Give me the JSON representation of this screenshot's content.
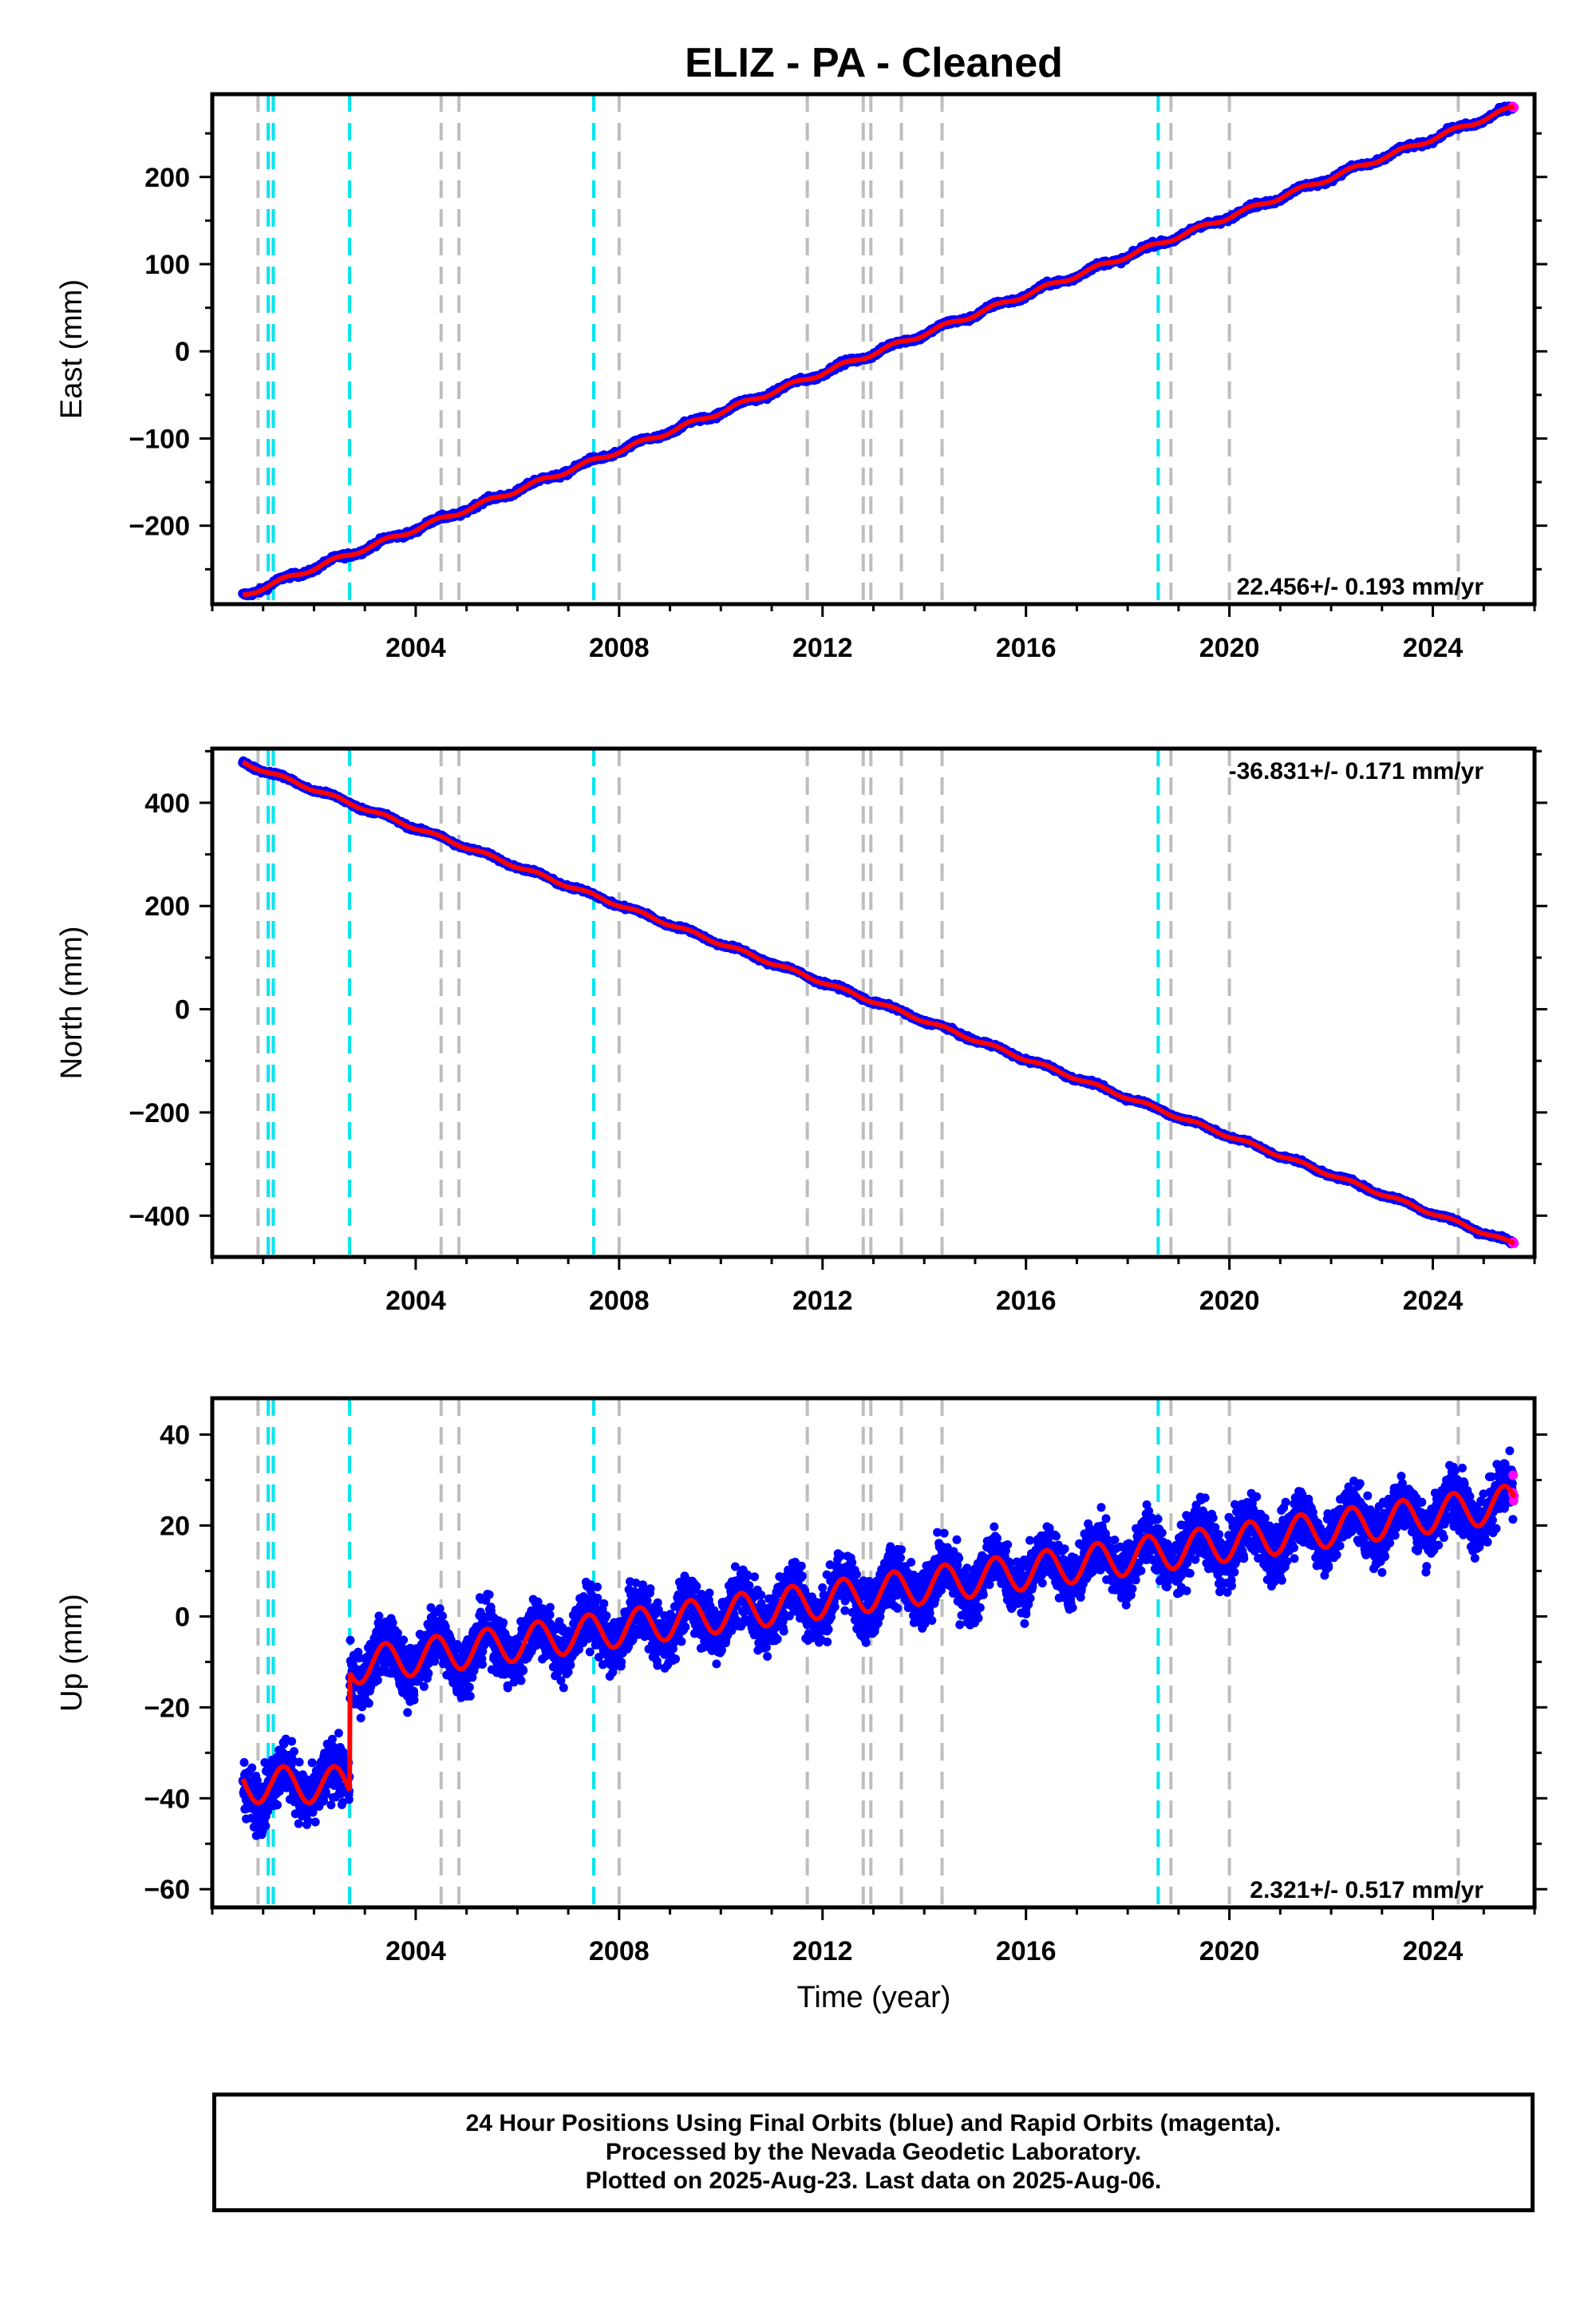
{
  "title": "ELIZ  - PA - Cleaned",
  "xlabel": "Time (year)",
  "caption": [
    "24 Hour Positions Using Final Orbits (blue) and Rapid Orbits (magenta).",
    "Processed by the Nevada Geodetic Laboratory.",
    "Plotted on 2025-Aug-23. Last data on 2025-Aug-06."
  ],
  "colors": {
    "final_points": "#0000ff",
    "rapid_points": "#ff00ff",
    "model": "#ff0000",
    "equipment_change": "#00e5ee",
    "earthquake": "#bebebe"
  },
  "chart_data": [
    {
      "type": "scatter",
      "component": "East",
      "ylabel": "East (mm)",
      "xlim": [
        2000.0,
        2026.0
      ],
      "ylim": [
        -290,
        295
      ],
      "xticks": [
        2004,
        2008,
        2012,
        2016,
        2020,
        2024
      ],
      "yticks": [
        -200,
        -100,
        0,
        100,
        200
      ],
      "ytick_labels": [
        "−200",
        "−100",
        "0",
        "100",
        "200"
      ],
      "rate_text": "22.456+/- 0.193 mm/yr",
      "rate_position": "bottom-right",
      "start_year": 2000.6,
      "end_year": 2025.6,
      "start_value": -280,
      "end_value": 280,
      "seasonal_amplitude": 2.5,
      "scatter": 2,
      "series": [
        {
          "name": "Final Orbits",
          "color": "blue"
        },
        {
          "name": "Rapid Orbits",
          "color": "magenta"
        },
        {
          "name": "Model",
          "color": "red"
        }
      ]
    },
    {
      "type": "scatter",
      "component": "North",
      "ylabel": "North (mm)",
      "xlim": [
        2000.0,
        2026.0
      ],
      "ylim": [
        -480,
        505
      ],
      "xticks": [
        2004,
        2008,
        2012,
        2016,
        2020,
        2024
      ],
      "yticks": [
        -400,
        -200,
        0,
        200,
        400
      ],
      "ytick_labels": [
        "−400",
        "−200",
        "0",
        "200",
        "400"
      ],
      "rate_text": "-36.831+/- 0.171 mm/yr",
      "rate_position": "top-right",
      "start_year": 2000.6,
      "end_year": 2025.6,
      "start_value": 478,
      "end_value": -455,
      "seasonal_amplitude": 3,
      "scatter": 2.5,
      "series": [
        {
          "name": "Final Orbits",
          "color": "blue"
        },
        {
          "name": "Rapid Orbits",
          "color": "magenta"
        },
        {
          "name": "Model",
          "color": "red"
        }
      ]
    },
    {
      "type": "scatter",
      "component": "Up",
      "ylabel": "Up (mm)",
      "xlim": [
        2000.0,
        2026.0
      ],
      "ylim": [
        -64,
        48
      ],
      "xticks": [
        2004,
        2008,
        2012,
        2016,
        2020,
        2024
      ],
      "yticks": [
        -60,
        -40,
        -20,
        0,
        20,
        40
      ],
      "ytick_labels": [
        "−60",
        "−40",
        "−20",
        "0",
        "20",
        "40"
      ],
      "rate_text": "2.321+/- 0.517 mm/yr",
      "rate_position": "bottom-right",
      "start_year": 2000.6,
      "end_year": 2025.6,
      "offset_year": 2002.7,
      "pre_offset_level": -37,
      "post_offset_level": -11,
      "end_level": 25,
      "seasonal_amplitude": 4,
      "scatter": 4.5,
      "series": [
        {
          "name": "Final Orbits",
          "color": "blue"
        },
        {
          "name": "Rapid Orbits",
          "color": "magenta"
        },
        {
          "name": "Model",
          "color": "red"
        }
      ]
    }
  ],
  "equipment_change_years": [
    2001.1,
    2001.2,
    2002.7,
    2007.5,
    2018.6
  ],
  "earthquake_years": [
    2000.9,
    2004.5,
    2004.85,
    2008.0,
    2011.7,
    2012.8,
    2012.95,
    2013.55,
    2014.35,
    2018.85,
    2020.0,
    2024.5
  ]
}
